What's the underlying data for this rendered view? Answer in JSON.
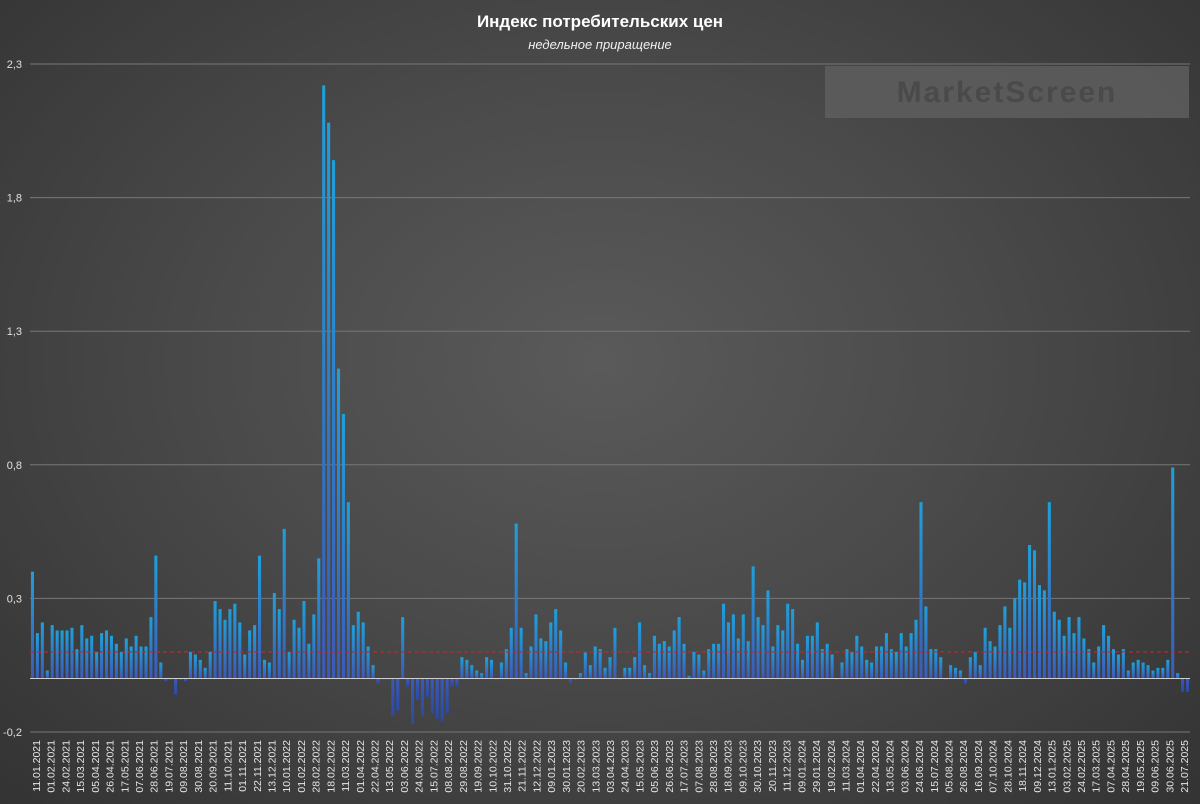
{
  "chart_data": {
    "type": "bar",
    "title": "Индекс потребительских цен",
    "subtitle": "недельное приращение",
    "watermark": "MarketScreen",
    "ylim": [
      -0.2,
      2.3
    ],
    "yticks": [
      "-0,2",
      "0,3",
      "0,8",
      "1,3",
      "1,8",
      "2,3"
    ],
    "ytick_values": [
      -0.2,
      0.3,
      0.8,
      1.3,
      1.8,
      2.3
    ],
    "grid": true,
    "legend": "none",
    "reference_line": {
      "value": 0.1,
      "color": "#cc2222",
      "style": "dashed"
    },
    "colors": {
      "bar_top": "#1ea0dc",
      "bar_bottom": "#3c5ab8"
    },
    "x_labels": [
      "11.01.2021",
      "01.02.2021",
      "24.02.2021",
      "15.03.2021",
      "05.04.2021",
      "26.04.2021",
      "17.05.2021",
      "07.06.2021",
      "28.06.2021",
      "19.07.2021",
      "09.08.2021",
      "30.08.2021",
      "20.09.2021",
      "11.10.2021",
      "01.11.2021",
      "22.11.2021",
      "13.12.2021",
      "10.01.2022",
      "01.02.2022",
      "28.02.2022",
      "18.02.2022",
      "11.03.2022",
      "01.04.2022",
      "22.04.2022",
      "13.05.2022",
      "03.06.2022",
      "24.06.2022",
      "15.07.2022",
      "08.08.2022",
      "29.08.2022",
      "19.09.2022",
      "10.10.2022",
      "31.10.2022",
      "21.11.2022",
      "12.12.2022",
      "09.01.2023",
      "30.01.2023",
      "20.02.2023",
      "13.03.2023",
      "03.04.2023",
      "24.04.2023",
      "15.05.2023",
      "05.06.2023",
      "26.06.2023",
      "17.07.2023",
      "07.08.2023",
      "28.08.2023",
      "18.09.2023",
      "09.10.2023",
      "30.10.2023",
      "20.11.2023",
      "11.12.2023",
      "09.01.2024",
      "29.01.2024",
      "19.02.2024",
      "11.03.2024",
      "01.04.2024",
      "22.04.2024",
      "13.05.2024",
      "03.06.2024",
      "24.06.2024",
      "15.07.2024",
      "05.08.2024",
      "26.08.2024",
      "16.09.2024",
      "07.10.2024",
      "28.10.2024",
      "18.11.2024",
      "09.12.2024",
      "13.01.2025",
      "03.02.2025",
      "24.02.2025",
      "17.03.2025",
      "07.04.2025",
      "28.04.2025",
      "19.05.2025",
      "09.06.2025",
      "30.06.2025",
      "21.07.2025"
    ],
    "values": [
      0.4,
      0.17,
      0.21,
      0.03,
      0.2,
      0.18,
      0.18,
      0.18,
      0.19,
      0.11,
      0.2,
      0.15,
      0.16,
      0.1,
      0.17,
      0.18,
      0.16,
      0.13,
      0.1,
      0.15,
      0.12,
      0.16,
      0.12,
      0.12,
      0.23,
      0.46,
      0.06,
      -0.01,
      0.0,
      -0.06,
      0.0,
      -0.01,
      0.1,
      0.09,
      0.07,
      0.04,
      0.1,
      0.29,
      0.26,
      0.22,
      0.26,
      0.28,
      0.21,
      0.09,
      0.18,
      0.2,
      0.46,
      0.07,
      0.06,
      0.32,
      0.26,
      0.56,
      0.1,
      0.22,
      0.19,
      0.29,
      0.13,
      0.24,
      0.45,
      2.22,
      2.08,
      1.94,
      1.16,
      0.99,
      0.66,
      0.2,
      0.25,
      0.21,
      0.12,
      0.05,
      -0.02,
      0.0,
      0.0,
      -0.14,
      -0.12,
      0.23,
      -0.03,
      -0.17,
      -0.08,
      -0.14,
      -0.07,
      -0.13,
      -0.15,
      -0.16,
      -0.13,
      -0.03,
      -0.03,
      0.08,
      0.07,
      0.05,
      0.03,
      0.02,
      0.08,
      0.07,
      0.0,
      0.06,
      0.11,
      0.19,
      0.58,
      0.19,
      0.02,
      0.12,
      0.24,
      0.15,
      0.14,
      0.21,
      0.26,
      0.18,
      0.06,
      -0.02,
      0.0,
      0.02,
      0.1,
      0.05,
      0.12,
      0.11,
      0.04,
      0.08,
      0.19,
      0.0,
      0.04,
      0.04,
      0.08,
      0.21,
      0.05,
      0.02,
      0.16,
      0.13,
      0.14,
      0.12,
      0.18,
      0.23,
      0.13,
      0.01,
      0.1,
      0.09,
      0.03,
      0.11,
      0.13,
      0.13,
      0.28,
      0.21,
      0.24,
      0.15,
      0.24,
      0.14,
      0.42,
      0.23,
      0.2,
      0.33,
      0.12,
      0.2,
      0.18,
      0.28,
      0.26,
      0.13,
      0.07,
      0.16,
      0.16,
      0.21,
      0.11,
      0.13,
      0.09,
      0.0,
      0.06,
      0.11,
      0.1,
      0.16,
      0.12,
      0.07,
      0.06,
      0.12,
      0.12,
      0.17,
      0.11,
      0.1,
      0.17,
      0.12,
      0.17,
      0.22,
      0.66,
      0.27,
      0.11,
      0.11,
      0.08,
      0.0,
      0.05,
      0.04,
      0.03,
      -0.02,
      0.08,
      0.1,
      0.05,
      0.19,
      0.14,
      0.12,
      0.2,
      0.27,
      0.19,
      0.3,
      0.37,
      0.36,
      0.5,
      0.48,
      0.35,
      0.33,
      0.66,
      0.25,
      0.22,
      0.16,
      0.23,
      0.17,
      0.23,
      0.15,
      0.11,
      0.06,
      0.12,
      0.2,
      0.16,
      0.11,
      0.09,
      0.11,
      0.03,
      0.06,
      0.07,
      0.06,
      0.05,
      0.03,
      0.04,
      0.04,
      0.07,
      0.79,
      0.02,
      -0.05,
      -0.05
    ]
  }
}
